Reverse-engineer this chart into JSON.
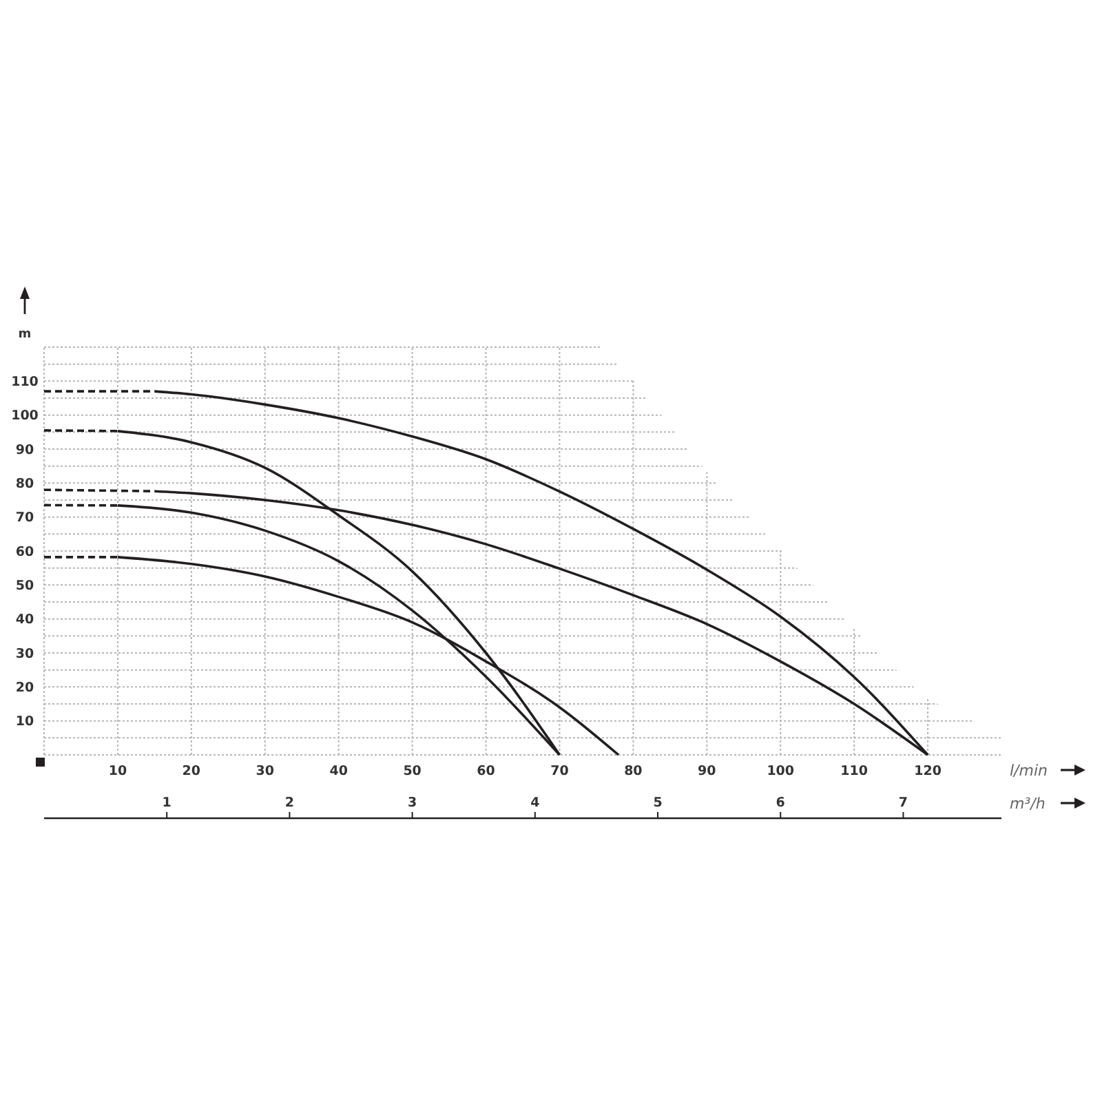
{
  "chart_data": {
    "type": "line",
    "xlabel": "l/min",
    "ylabel": "m",
    "x2label": "m³/h",
    "xlim": [
      0,
      130
    ],
    "xticks": [
      10,
      20,
      30,
      40,
      50,
      60,
      70,
      80,
      90,
      100,
      110,
      120
    ],
    "ylim": [
      0,
      120
    ],
    "yticks": [
      {
        "value": 5,
        "label": null
      },
      10,
      {
        "value": 15,
        "label": null
      },
      20,
      {
        "value": 25,
        "label": null
      },
      30,
      {
        "value": 35,
        "label": null
      },
      40,
      {
        "value": 45,
        "label": null
      },
      50,
      {
        "value": 55,
        "label": null
      },
      60,
      {
        "value": 65,
        "label": null
      },
      70,
      {
        "value": 75,
        "label": null
      },
      80,
      {
        "value": 85,
        "label": null
      },
      90,
      {
        "value": 95,
        "label": null
      },
      100,
      {
        "value": 105,
        "label": null
      },
      110,
      {
        "value": 115,
        "label": null
      },
      {
        "value": 120,
        "label": null
      }
    ],
    "x2lim": [
      0,
      7.8
    ],
    "x2ticks": [
      1,
      2,
      3,
      4,
      5,
      6,
      7
    ],
    "grid": true,
    "series": [
      {
        "type": "line",
        "line_style": "dashed",
        "color": "#231f20",
        "x": [
          0,
          15
        ],
        "values": [
          107,
          107
        ]
      },
      {
        "type": "line",
        "line_style": "solid",
        "color": "#231f20",
        "x": [
          15,
          20,
          30,
          40,
          50,
          60,
          70,
          80,
          90,
          100,
          110,
          120
        ],
        "values": [
          107,
          106.1,
          103.1,
          99.1,
          93.7,
          87,
          77.5,
          66.5,
          54.5,
          40.7,
          22.9,
          0
        ]
      },
      {
        "type": "line",
        "line_style": "dashed",
        "color": "#231f20",
        "x": [
          0,
          10
        ],
        "values": [
          95.5,
          95.3
        ]
      },
      {
        "type": "line",
        "line_style": "solid",
        "color": "#231f20",
        "x": [
          10,
          20,
          30,
          40,
          50,
          60,
          70
        ],
        "values": [
          95.3,
          92,
          84.5,
          70.5,
          54,
          30,
          0
        ]
      },
      {
        "type": "line",
        "line_style": "dashed",
        "color": "#231f20",
        "x": [
          0,
          15
        ],
        "values": [
          78,
          77.6
        ]
      },
      {
        "type": "line",
        "line_style": "solid",
        "color": "#231f20",
        "x": [
          15,
          20,
          30,
          40,
          50,
          60,
          70,
          80,
          90,
          100,
          110,
          120
        ],
        "values": [
          77.6,
          77,
          75,
          72,
          67.7,
          62,
          54.8,
          47,
          38.5,
          27.5,
          15,
          0
        ]
      },
      {
        "type": "line",
        "line_style": "dashed",
        "color": "#231f20",
        "x": [
          0,
          10
        ],
        "values": [
          73.5,
          73.4
        ]
      },
      {
        "type": "line",
        "line_style": "solid",
        "color": "#231f20",
        "x": [
          10,
          20,
          30,
          40,
          50,
          60,
          70
        ],
        "values": [
          73.4,
          71.3,
          66,
          57,
          42.5,
          23,
          0
        ]
      },
      {
        "type": "line",
        "line_style": "dashed",
        "color": "#231f20",
        "x": [
          0,
          10
        ],
        "values": [
          58.2,
          58.2
        ]
      },
      {
        "type": "line",
        "line_style": "solid",
        "color": "#231f20",
        "x": [
          10,
          20,
          30,
          40,
          50,
          60,
          70,
          78
        ],
        "values": [
          58.2,
          56.2,
          52.5,
          46.5,
          39,
          27.5,
          14,
          0
        ]
      }
    ]
  }
}
